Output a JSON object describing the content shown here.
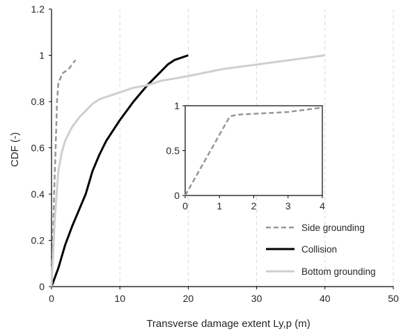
{
  "chart_data": [
    {
      "type": "line",
      "xlabel": "Transverse  damage extent Ly,p (m)",
      "ylabel": "CDF (-)",
      "xlim": [
        0,
        50
      ],
      "ylim": [
        0,
        1.2
      ],
      "x_ticks": [
        "0",
        "10",
        "20",
        "30",
        "40",
        "50"
      ],
      "y_ticks": [
        "0",
        "0.2",
        "0.4",
        "0.6",
        "0.8",
        "1",
        "1.2"
      ],
      "grid": "vertical dashed",
      "legend_position": "bottom-right",
      "series": [
        {
          "name": "Side grounding",
          "style": "dashed",
          "color": "#969696",
          "points": [
            [
              0,
              0
            ],
            [
              0.2,
              0.2
            ],
            [
              0.4,
              0.42
            ],
            [
              0.6,
              0.6
            ],
            [
              0.8,
              0.8
            ],
            [
              1.0,
              0.88
            ],
            [
              1.3,
              0.9
            ],
            [
              1.5,
              0.92
            ],
            [
              2.0,
              0.93
            ],
            [
              2.5,
              0.94
            ],
            [
              3.0,
              0.96
            ],
            [
              3.5,
              0.98
            ]
          ]
        },
        {
          "name": "Collision",
          "style": "solid",
          "color": "#000000",
          "points": [
            [
              0,
              0
            ],
            [
              1,
              0.08
            ],
            [
              2,
              0.18
            ],
            [
              3,
              0.26
            ],
            [
              4,
              0.33
            ],
            [
              5,
              0.4
            ],
            [
              6,
              0.5
            ],
            [
              7,
              0.57
            ],
            [
              8,
              0.63
            ],
            [
              10,
              0.72
            ],
            [
              12,
              0.8
            ],
            [
              14,
              0.87
            ],
            [
              16,
              0.93
            ],
            [
              17,
              0.96
            ],
            [
              18,
              0.98
            ],
            [
              20,
              1.0
            ]
          ]
        },
        {
          "name": "Bottom grounding",
          "style": "solid",
          "color": "#cfcfcf",
          "points": [
            [
              0,
              0
            ],
            [
              0.5,
              0.3
            ],
            [
              1,
              0.5
            ],
            [
              1.5,
              0.58
            ],
            [
              2,
              0.63
            ],
            [
              3,
              0.69
            ],
            [
              4,
              0.73
            ],
            [
              5,
              0.76
            ],
            [
              6,
              0.79
            ],
            [
              7,
              0.81
            ],
            [
              8,
              0.82
            ],
            [
              10,
              0.84
            ],
            [
              12,
              0.86
            ],
            [
              14,
              0.87
            ],
            [
              16,
              0.89
            ],
            [
              18,
              0.9
            ],
            [
              20,
              0.91
            ],
            [
              25,
              0.94
            ],
            [
              30,
              0.96
            ],
            [
              35,
              0.98
            ],
            [
              40,
              1.0
            ]
          ]
        }
      ]
    },
    {
      "type": "line",
      "role": "inset",
      "xlim": [
        0,
        4
      ],
      "ylim": [
        0,
        1
      ],
      "x_ticks": [
        "0",
        "1",
        "2",
        "3",
        "4"
      ],
      "y_ticks": [
        "0",
        "0.5",
        "1"
      ],
      "series": [
        {
          "name": "Side grounding",
          "style": "dashed",
          "color": "#969696",
          "points": [
            [
              0,
              0
            ],
            [
              1.3,
              0.88
            ],
            [
              1.5,
              0.9
            ],
            [
              2.0,
              0.91
            ],
            [
              3.0,
              0.93
            ],
            [
              4.0,
              0.98
            ]
          ]
        }
      ]
    }
  ]
}
